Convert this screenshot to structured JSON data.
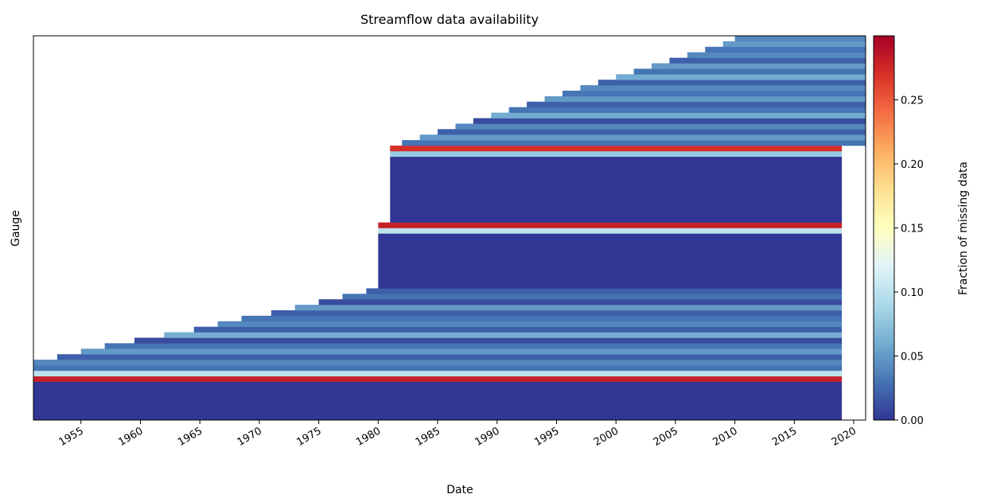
{
  "chart_data": {
    "type": "heatmap",
    "title": "Streamflow data availability",
    "xlabel": "Date",
    "ylabel": "Gauge",
    "colorbar_label": "Fraction of missing data",
    "colormap": "RdYlBu_r",
    "xlim": [
      1951,
      2021
    ],
    "xticks": [
      1955,
      1960,
      1965,
      1970,
      1975,
      1980,
      1985,
      1990,
      1995,
      2000,
      2005,
      2010,
      2015,
      2020
    ],
    "clim": [
      0,
      0.3
    ],
    "cticks": [
      {
        "value": 0,
        "label": "0.00"
      },
      {
        "value": 0.05,
        "label": "0.05"
      },
      {
        "value": 0.1,
        "label": "0.10"
      },
      {
        "value": 0.15,
        "label": "0.15"
      },
      {
        "value": 0.2,
        "label": "0.20"
      },
      {
        "value": 0.25,
        "label": "0.25"
      }
    ],
    "row_start": [
      1951,
      1951,
      1951,
      1951,
      1951,
      1951,
      1951,
      1951,
      1951,
      1951,
      1951,
      1953,
      1955,
      1957,
      1959.5,
      1962,
      1964.5,
      1966.5,
      1968.5,
      1971,
      1973,
      1975,
      1977,
      1979,
      1980,
      1980,
      1980,
      1980,
      1980,
      1980,
      1980,
      1980,
      1980,
      1980,
      1980,
      1980,
      1981,
      1981,
      1981,
      1981,
      1981,
      1981,
      1981,
      1981,
      1981,
      1981,
      1981,
      1981,
      1981,
      1981,
      1982,
      1983.5,
      1985,
      1986.5,
      1988,
      1989.5,
      1991,
      1992.5,
      1994,
      1995.5,
      1997,
      1998.5,
      2000,
      2001.5,
      2003,
      2004.5,
      2006,
      2007.5,
      2009,
      2010
    ],
    "row_end": [
      2019,
      2019,
      2019,
      2019,
      2019,
      2019,
      2019,
      2019,
      2019,
      2019,
      2019,
      2019,
      2019,
      2019,
      2019,
      2019,
      2019,
      2019,
      2019,
      2019,
      2019,
      2019,
      2019,
      2019,
      2019,
      2019,
      2019,
      2019,
      2019,
      2019,
      2019,
      2019,
      2019,
      2019,
      2019,
      2019,
      2019,
      2019,
      2019,
      2019,
      2019,
      2019,
      2019,
      2019,
      2019,
      2019,
      2019,
      2019,
      2019,
      2019,
      2021,
      2021,
      2021,
      2021,
      2021,
      2021,
      2021,
      2021,
      2021,
      2021,
      2021,
      2021,
      2021,
      2021,
      2021,
      2021,
      2021,
      2021,
      2021,
      2021
    ],
    "values": [
      0,
      0,
      0,
      0,
      0,
      0,
      0,
      0.28,
      0.1,
      0.03,
      0.04,
      0.02,
      0.05,
      0.03,
      0.01,
      0.06,
      0.02,
      0.04,
      0.03,
      0.02,
      0.05,
      0.01,
      0.03,
      0.02,
      0,
      0,
      0,
      0,
      0,
      0,
      0,
      0,
      0,
      0,
      0.1,
      0.28,
      0,
      0,
      0,
      0,
      0,
      0,
      0,
      0,
      0,
      0,
      0,
      0,
      0.08,
      0.27,
      0.03,
      0.05,
      0.02,
      0.04,
      0.01,
      0.06,
      0.03,
      0.02,
      0.05,
      0.03,
      0.04,
      0.02,
      0.06,
      0.03,
      0.05,
      0.02,
      0.04,
      0.03,
      0.05,
      0.04
    ]
  }
}
